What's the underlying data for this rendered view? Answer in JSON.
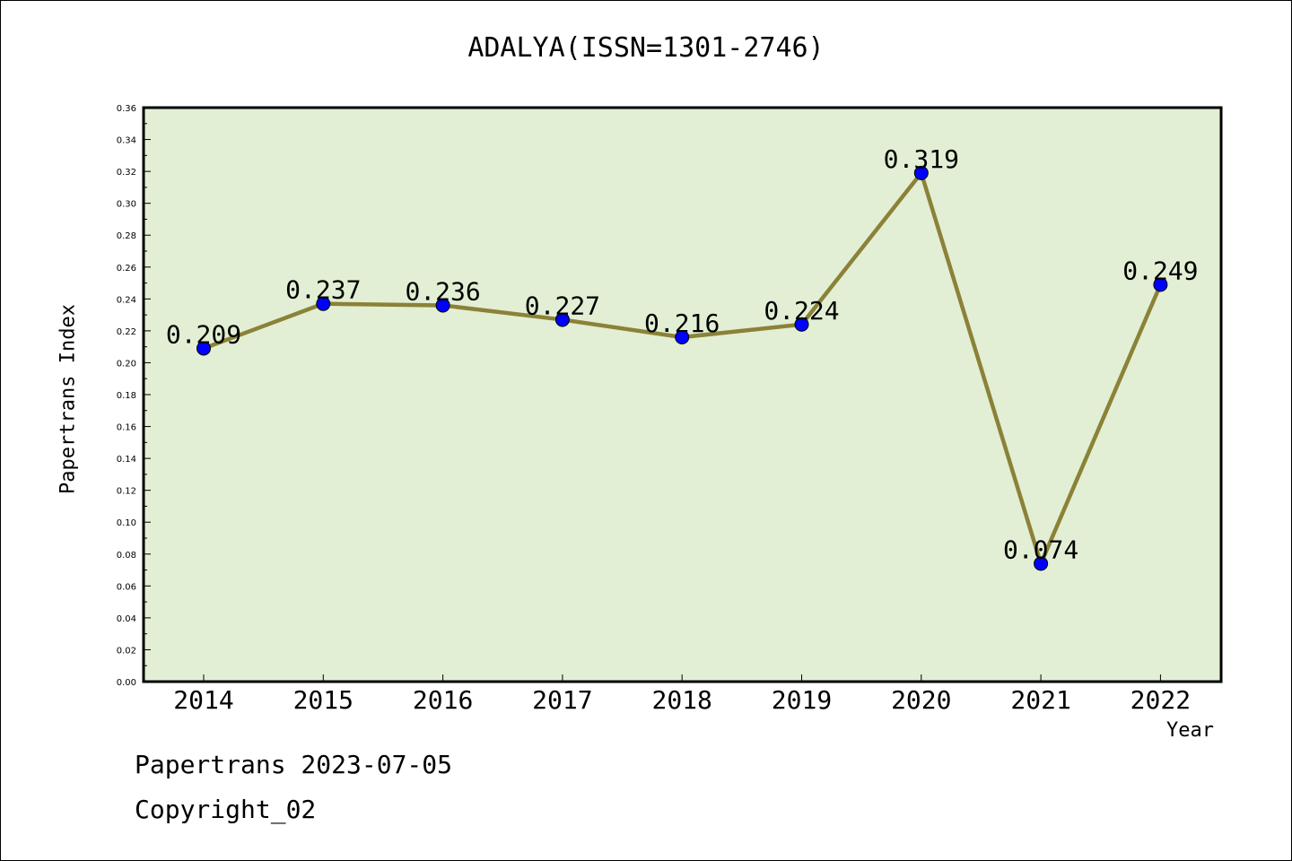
{
  "chart_data": {
    "type": "line",
    "title": "ADALYA(ISSN=1301-2746)",
    "xlabel": "Year",
    "ylabel": "Papertrans Index",
    "categories": [
      "2014",
      "2015",
      "2016",
      "2017",
      "2018",
      "2019",
      "2020",
      "2021",
      "2022"
    ],
    "series": [
      {
        "values": [
          0.209,
          0.237,
          0.236,
          0.227,
          0.216,
          0.224,
          0.319,
          0.074,
          0.249
        ]
      }
    ],
    "data_labels": [
      "0.209",
      "0.237",
      "0.236",
      "0.227",
      "0.216",
      "0.224",
      "0.319",
      "0.074",
      "0.249"
    ],
    "ylim": [
      0,
      0.36
    ],
    "ytick_step": 0.02,
    "yticks": [
      "0.00",
      "0.02",
      "0.04",
      "0.06",
      "0.08",
      "0.10",
      "0.12",
      "0.14",
      "0.16",
      "0.18",
      "0.20",
      "0.22",
      "0.24",
      "0.26",
      "0.28",
      "0.30",
      "0.32",
      "0.34",
      "0.36"
    ],
    "grid": false,
    "legend": "none",
    "colors": {
      "plot_bg": "#e2efd4",
      "line": "#8b8238",
      "marker": "#0000ff"
    }
  },
  "footer": {
    "line1": "Papertrans 2023-07-05",
    "line2": "Copyright_02"
  }
}
